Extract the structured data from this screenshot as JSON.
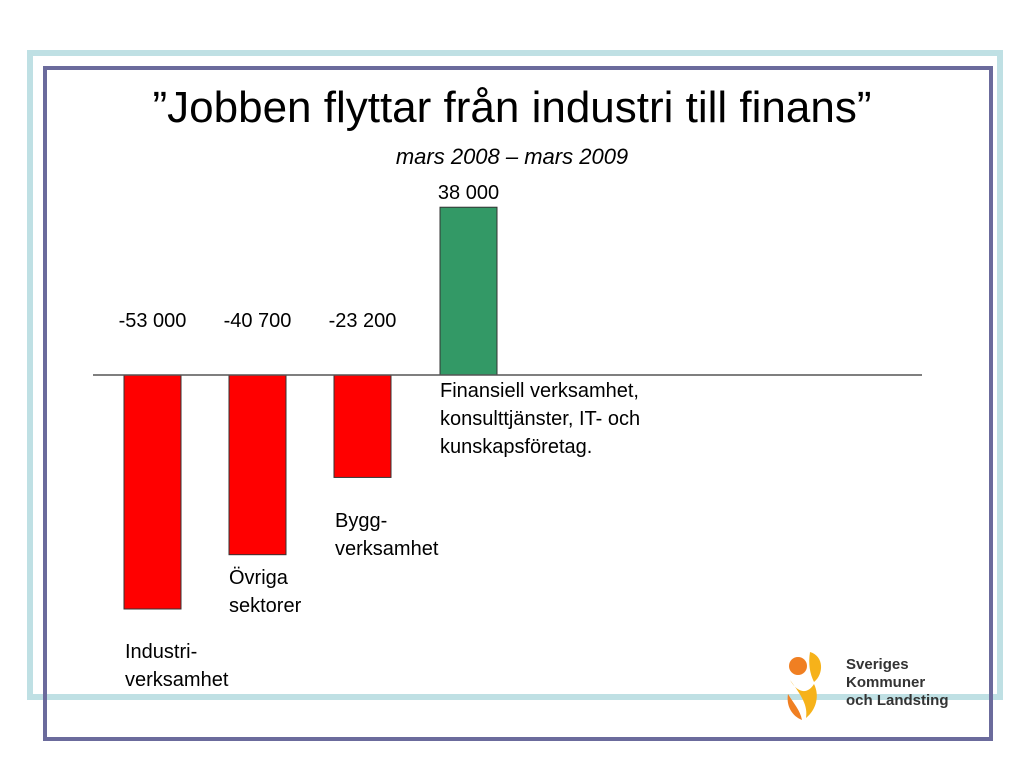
{
  "title": "”Jobben flyttar från industri till finans”",
  "subtitle": "mars 2008 – mars 2009",
  "colors": {
    "negative_bar": "#ff0000",
    "positive_bar": "#339966",
    "frame_outer": "#bfe0e4",
    "frame_inner": "#6b6b9c"
  },
  "chart_data": {
    "type": "bar",
    "categories": [
      [
        "Industri-",
        "verksamhet"
      ],
      [
        "Övriga",
        "sektorer"
      ],
      [
        "Bygg-",
        "verksamhet"
      ],
      [
        "Finansiell verksamhet,",
        "konsulttjänster, IT- och",
        "kunskapsföretag."
      ]
    ],
    "values": [
      -53000,
      -40700,
      -23200,
      38000
    ],
    "value_labels": [
      "-53 000",
      "-40 700",
      "-23 200",
      "38 000"
    ],
    "title": "”Jobben flyttar från industri till finans”",
    "subtitle": "mars 2008 – mars 2009",
    "xlabel": "",
    "ylabel": "",
    "ylim": [
      -53000,
      38000
    ],
    "grid": false,
    "legend": "none"
  },
  "logo": {
    "icon": "skl-figure-logo-icon",
    "lines": [
      "Sveriges",
      "Kommuner",
      "och Landsting"
    ]
  }
}
